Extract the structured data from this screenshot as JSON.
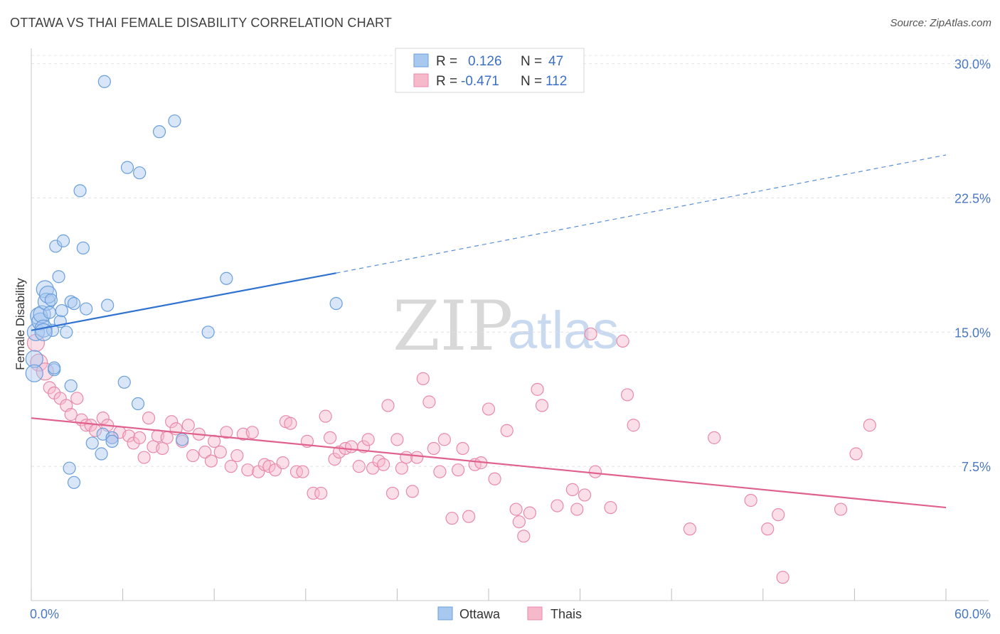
{
  "header": {
    "title": "OTTAWA VS THAI FEMALE DISABILITY CORRELATION CHART",
    "source": "Source: ZipAtlas.com"
  },
  "watermark": {
    "zip": "ZIP",
    "atlas": "atlas"
  },
  "legend": {
    "r_label": "R =",
    "n_label": "N =",
    "ottawa": {
      "r": "0.126",
      "n": "47"
    },
    "thais": {
      "r": "-0.471",
      "n": "112"
    }
  },
  "colors": {
    "ottawa_fill": "#a8c8f0",
    "ottawa_stroke": "#6a9fdc",
    "ottawa_line": "#2f72d0",
    "thais_fill": "#f6b8cb",
    "thais_stroke": "#e88aaa",
    "thais_line": "#e0608e"
  },
  "chart_data": {
    "type": "scatter",
    "title": "OTTAWA VS THAI FEMALE DISABILITY CORRELATION CHART",
    "xlabel": "",
    "ylabel": "Female Disability",
    "xlim": [
      0,
      60
    ],
    "ylim": [
      0,
      30.5
    ],
    "x_tick_labels": [
      "0.0%",
      "60.0%"
    ],
    "y_ticks": [
      7.5,
      15.0,
      22.5,
      30.0
    ],
    "y_tick_labels": [
      "7.5%",
      "15.0%",
      "22.5%",
      "30.0%"
    ],
    "grid": "horizontal dashed",
    "legend_position": "top-center",
    "series": [
      {
        "name": "Ottawa",
        "points": [
          [
            0.2,
            13.5
          ],
          [
            0.2,
            12.7
          ],
          [
            0.3,
            15.0
          ],
          [
            0.5,
            15.9
          ],
          [
            0.6,
            15.6
          ],
          [
            0.7,
            16.0
          ],
          [
            0.8,
            15.2
          ],
          [
            0.9,
            17.4
          ],
          [
            1.0,
            16.7
          ],
          [
            1.1,
            17.1
          ],
          [
            1.2,
            16.1
          ],
          [
            1.3,
            16.8
          ],
          [
            1.4,
            15.1
          ],
          [
            1.5,
            12.9
          ],
          [
            1.6,
            19.8
          ],
          [
            1.8,
            18.1
          ],
          [
            1.9,
            15.6
          ],
          [
            2.0,
            16.2
          ],
          [
            2.1,
            20.1
          ],
          [
            2.3,
            15.0
          ],
          [
            2.6,
            16.7
          ],
          [
            2.6,
            12.0
          ],
          [
            2.8,
            16.6
          ],
          [
            3.2,
            22.9
          ],
          [
            3.4,
            19.7
          ],
          [
            3.6,
            16.3
          ],
          [
            4.0,
            8.8
          ],
          [
            4.6,
            8.2
          ],
          [
            4.7,
            9.3
          ],
          [
            4.8,
            29.0
          ],
          [
            5.0,
            16.5
          ],
          [
            5.3,
            9.1
          ],
          [
            5.3,
            8.9
          ],
          [
            6.1,
            12.2
          ],
          [
            6.3,
            24.2
          ],
          [
            7.0,
            11.0
          ],
          [
            7.1,
            23.9
          ],
          [
            8.4,
            26.2
          ],
          [
            9.4,
            26.8
          ],
          [
            9.9,
            9.0
          ],
          [
            11.6,
            15.0
          ],
          [
            12.8,
            18.0
          ],
          [
            2.5,
            7.4
          ],
          [
            2.8,
            6.6
          ],
          [
            1.5,
            13.0
          ],
          [
            0.8,
            15.0
          ],
          [
            20.0,
            16.6
          ]
        ],
        "trend": {
          "x": [
            0.0,
            20.0,
            60.0
          ],
          "y": [
            15.1,
            18.3,
            24.9
          ],
          "solid_until": 20.0
        }
      },
      {
        "name": "Thais",
        "points": [
          [
            0.3,
            14.4
          ],
          [
            0.5,
            13.3
          ],
          [
            0.9,
            12.8
          ],
          [
            1.2,
            11.9
          ],
          [
            1.5,
            11.6
          ],
          [
            1.9,
            11.3
          ],
          [
            2.3,
            10.9
          ],
          [
            2.6,
            10.4
          ],
          [
            3.0,
            11.3
          ],
          [
            3.3,
            10.1
          ],
          [
            3.6,
            9.8
          ],
          [
            3.9,
            9.8
          ],
          [
            4.2,
            9.5
          ],
          [
            4.7,
            10.2
          ],
          [
            5.0,
            9.8
          ],
          [
            5.3,
            9.1
          ],
          [
            5.8,
            9.4
          ],
          [
            6.4,
            9.2
          ],
          [
            6.7,
            8.8
          ],
          [
            7.1,
            9.1
          ],
          [
            7.4,
            8.0
          ],
          [
            7.7,
            10.2
          ],
          [
            8.0,
            8.6
          ],
          [
            8.3,
            9.2
          ],
          [
            8.6,
            8.5
          ],
          [
            8.9,
            9.1
          ],
          [
            9.2,
            10.0
          ],
          [
            9.5,
            9.6
          ],
          [
            9.9,
            8.9
          ],
          [
            10.3,
            9.8
          ],
          [
            10.6,
            8.1
          ],
          [
            11.0,
            9.3
          ],
          [
            11.4,
            8.3
          ],
          [
            11.8,
            7.8
          ],
          [
            12.0,
            8.9
          ],
          [
            12.4,
            8.3
          ],
          [
            12.8,
            9.4
          ],
          [
            13.1,
            7.5
          ],
          [
            13.5,
            8.1
          ],
          [
            13.9,
            9.3
          ],
          [
            14.2,
            7.3
          ],
          [
            14.5,
            9.4
          ],
          [
            14.9,
            7.2
          ],
          [
            15.3,
            7.6
          ],
          [
            15.6,
            7.5
          ],
          [
            16.0,
            7.3
          ],
          [
            16.5,
            7.7
          ],
          [
            16.7,
            10.0
          ],
          [
            17.0,
            9.9
          ],
          [
            17.4,
            7.2
          ],
          [
            17.8,
            7.2
          ],
          [
            18.1,
            8.9
          ],
          [
            18.5,
            6.0
          ],
          [
            19.0,
            6.0
          ],
          [
            19.3,
            10.3
          ],
          [
            19.6,
            9.1
          ],
          [
            19.9,
            7.9
          ],
          [
            20.2,
            8.3
          ],
          [
            20.6,
            8.5
          ],
          [
            21.0,
            8.6
          ],
          [
            21.5,
            7.5
          ],
          [
            21.8,
            8.6
          ],
          [
            22.1,
            9.0
          ],
          [
            22.4,
            7.4
          ],
          [
            22.8,
            7.8
          ],
          [
            23.1,
            7.6
          ],
          [
            23.4,
            10.9
          ],
          [
            23.7,
            6.0
          ],
          [
            24.0,
            9.0
          ],
          [
            24.3,
            7.4
          ],
          [
            24.6,
            8.0
          ],
          [
            25.0,
            6.1
          ],
          [
            25.3,
            8.0
          ],
          [
            25.7,
            12.4
          ],
          [
            26.1,
            11.1
          ],
          [
            26.4,
            8.5
          ],
          [
            26.8,
            7.2
          ],
          [
            27.1,
            9.0
          ],
          [
            27.6,
            4.6
          ],
          [
            28.0,
            7.3
          ],
          [
            28.3,
            8.5
          ],
          [
            28.7,
            4.7
          ],
          [
            29.1,
            7.6
          ],
          [
            29.5,
            7.7
          ],
          [
            30.0,
            10.7
          ],
          [
            30.4,
            6.8
          ],
          [
            31.2,
            9.5
          ],
          [
            31.8,
            5.1
          ],
          [
            32.0,
            4.4
          ],
          [
            32.7,
            4.9
          ],
          [
            32.3,
            3.6
          ],
          [
            33.2,
            11.8
          ],
          [
            33.5,
            10.9
          ],
          [
            34.5,
            5.3
          ],
          [
            35.5,
            6.2
          ],
          [
            35.8,
            5.1
          ],
          [
            36.3,
            5.9
          ],
          [
            36.7,
            14.9
          ],
          [
            37.0,
            7.2
          ],
          [
            38.0,
            5.2
          ],
          [
            38.8,
            14.5
          ],
          [
            39.1,
            11.5
          ],
          [
            39.5,
            9.8
          ],
          [
            43.2,
            4.0
          ],
          [
            44.8,
            9.1
          ],
          [
            47.2,
            5.6
          ],
          [
            48.3,
            4.0
          ],
          [
            49.0,
            4.8
          ],
          [
            49.3,
            1.3
          ],
          [
            53.1,
            5.1
          ],
          [
            54.1,
            8.2
          ],
          [
            55.0,
            9.8
          ]
        ],
        "trend": {
          "x": [
            0.0,
            60.0
          ],
          "y": [
            10.2,
            5.2
          ]
        }
      }
    ]
  },
  "bottom_legend": [
    "Ottawa",
    "Thais"
  ]
}
